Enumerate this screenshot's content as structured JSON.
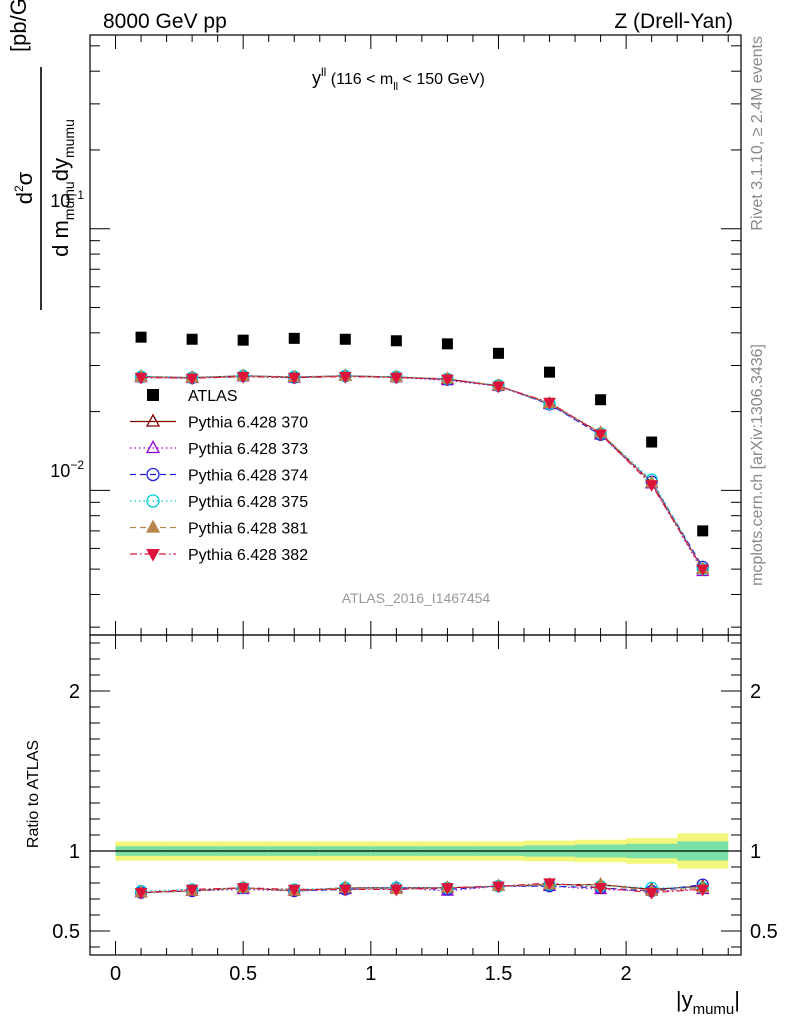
{
  "header": {
    "left": "8000 GeV pp",
    "right": "Z (Drell-Yan)"
  },
  "side_labels": {
    "rivet": "Rivet 3.1.10, ≥ 2.4M events",
    "mcplots": "mcplots.cern.ch [arXiv:1306.3436]"
  },
  "watermark": "ATLAS_2016_I1467454",
  "chart_data": [
    {
      "type": "scatter",
      "panel": "main",
      "title": "y^ll (116 < m_ll < 150 GeV)",
      "title_parts": {
        "a": "y",
        "a_sup": "ll",
        "b": " (116 < m",
        "b_sub": "ll",
        "c": " < 150 GeV)"
      },
      "ylabel_parts": {
        "num_a": "d",
        "num_sup": "2",
        "num_b": "σ",
        "den_a": "d m",
        "den_sub1": "mumu",
        "den_b": "dy",
        "den_sub2": "mumu",
        "unit": "[pb/GeV]"
      },
      "yscale": "log",
      "ylim": [
        0.0028,
        0.55
      ],
      "xlim": [
        -0.1,
        2.45
      ],
      "y_tick_labels": [
        {
          "base": "10",
          "exp": "−2",
          "value": 0.01
        },
        {
          "base": "10",
          "exp": "−1",
          "value": 0.1
        }
      ],
      "legend_placement": "left-middle",
      "x": [
        0.1,
        0.3,
        0.5,
        0.7,
        0.9,
        1.1,
        1.3,
        1.5,
        1.7,
        1.9,
        2.1,
        2.3
      ],
      "series": [
        {
          "name": "ATLAS",
          "marker": "square-filled",
          "color": "#000000",
          "line": "none",
          "values": [
            0.0385,
            0.0378,
            0.0375,
            0.0381,
            0.0378,
            0.0373,
            0.0363,
            0.0334,
            0.0283,
            0.0222,
            0.0153,
            0.007
          ]
        },
        {
          "name": "Pythia 6.428 370",
          "marker": "triangle-up-open",
          "color": "#800000",
          "line": "solid",
          "values": [
            0.0272,
            0.027,
            0.0274,
            0.0271,
            0.0274,
            0.0271,
            0.0266,
            0.0251,
            0.0215,
            0.0166,
            0.0107,
            0.005
          ]
        },
        {
          "name": "Pythia 6.428 373",
          "marker": "triangle-up-open",
          "color": "#9400d3",
          "line": "dotted",
          "values": [
            0.027,
            0.0268,
            0.0272,
            0.0269,
            0.0273,
            0.027,
            0.0263,
            0.025,
            0.0213,
            0.0163,
            0.0106,
            0.0049
          ]
        },
        {
          "name": "Pythia 6.428 374",
          "marker": "circle-open",
          "color": "#1f1fdc",
          "line": "dashed",
          "values": [
            0.0271,
            0.0269,
            0.0273,
            0.027,
            0.0273,
            0.0271,
            0.0265,
            0.0251,
            0.0213,
            0.0163,
            0.0108,
            0.0051
          ]
        },
        {
          "name": "Pythia 6.428 375",
          "marker": "circle-open",
          "color": "#00ced1",
          "line": "dotted",
          "values": [
            0.0272,
            0.027,
            0.0274,
            0.0272,
            0.0274,
            0.0272,
            0.0267,
            0.0252,
            0.0214,
            0.0165,
            0.011,
            0.005
          ]
        },
        {
          "name": "Pythia 6.428 381",
          "marker": "triangle-up-filled",
          "color": "#b8864b",
          "line": "dashed",
          "values": [
            0.0271,
            0.0269,
            0.0273,
            0.0271,
            0.0273,
            0.0271,
            0.0267,
            0.0251,
            0.0215,
            0.0166,
            0.0107,
            0.005
          ]
        },
        {
          "name": "Pythia 6.428 382",
          "marker": "triangle-down-filled",
          "color": "#dc143c",
          "line": "dashdot",
          "values": [
            0.027,
            0.0268,
            0.0272,
            0.027,
            0.0272,
            0.027,
            0.0266,
            0.025,
            0.0217,
            0.0164,
            0.0105,
            0.005
          ]
        }
      ]
    },
    {
      "type": "scatter",
      "panel": "ratio",
      "ylabel": "Ratio to ATLAS",
      "xlabel_parts": {
        "a": "|y",
        "sub": "mumu",
        "b": "|"
      },
      "ylim": [
        0.35,
        2.35
      ],
      "xlim": [
        -0.1,
        2.45
      ],
      "x_ticks": [
        0,
        0.5,
        1,
        1.5,
        2
      ],
      "x_tick_labels": [
        "0",
        "0.5",
        "1",
        "1.5",
        "2"
      ],
      "y_ticks": [
        0.5,
        1,
        2
      ],
      "y_tick_labels": [
        "0.5",
        "1",
        "2"
      ],
      "reference_line": 1,
      "band_edges": [
        0.0,
        0.2,
        0.4,
        0.6,
        0.8,
        1.0,
        1.2,
        1.4,
        1.6,
        1.8,
        2.0,
        2.2,
        2.4
      ],
      "band_inner": [
        0.03,
        0.03,
        0.03,
        0.03,
        0.03,
        0.03,
        0.03,
        0.03,
        0.035,
        0.04,
        0.045,
        0.06
      ],
      "band_outer": [
        0.06,
        0.06,
        0.06,
        0.06,
        0.06,
        0.06,
        0.06,
        0.06,
        0.065,
        0.07,
        0.08,
        0.11
      ],
      "x": [
        0.1,
        0.3,
        0.5,
        0.7,
        0.9,
        1.1,
        1.3,
        1.5,
        1.7,
        1.9,
        2.1,
        2.3
      ],
      "series": [
        {
          "name": "Pythia 6.428 370",
          "color": "#800000",
          "line": "solid",
          "marker": "triangle-up-open",
          "values": [
            0.74,
            0.75,
            0.77,
            0.75,
            0.77,
            0.77,
            0.77,
            0.78,
            0.79,
            0.79,
            0.76,
            0.78
          ]
        },
        {
          "name": "Pythia 6.428 373",
          "color": "#9400d3",
          "line": "dotted",
          "marker": "triangle-up-open",
          "values": [
            0.74,
            0.75,
            0.76,
            0.75,
            0.76,
            0.77,
            0.75,
            0.78,
            0.78,
            0.76,
            0.75,
            0.76
          ]
        },
        {
          "name": "Pythia 6.428 374",
          "color": "#1f1fdc",
          "line": "dashed",
          "marker": "circle-open",
          "values": [
            0.74,
            0.75,
            0.77,
            0.75,
            0.76,
            0.77,
            0.76,
            0.78,
            0.78,
            0.77,
            0.75,
            0.79
          ]
        },
        {
          "name": "Pythia 6.428 375",
          "color": "#00ced1",
          "line": "dotted",
          "marker": "circle-open",
          "values": [
            0.75,
            0.76,
            0.77,
            0.76,
            0.77,
            0.77,
            0.77,
            0.78,
            0.79,
            0.78,
            0.77,
            0.77
          ]
        },
        {
          "name": "Pythia 6.428 381",
          "color": "#b8864b",
          "line": "dashed",
          "marker": "triangle-up-filled",
          "values": [
            0.74,
            0.75,
            0.77,
            0.75,
            0.77,
            0.76,
            0.77,
            0.78,
            0.79,
            0.79,
            0.75,
            0.77
          ]
        },
        {
          "name": "Pythia 6.428 382",
          "color": "#dc143c",
          "line": "dashdot",
          "marker": "triangle-down-filled",
          "values": [
            0.74,
            0.76,
            0.77,
            0.76,
            0.76,
            0.76,
            0.77,
            0.78,
            0.8,
            0.77,
            0.74,
            0.76
          ]
        }
      ]
    }
  ]
}
